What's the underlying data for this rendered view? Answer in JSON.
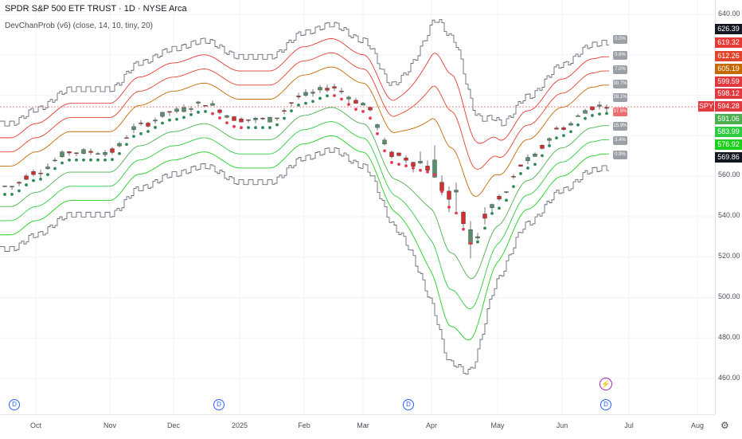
{
  "header": {
    "title": "SPDR S&P 500 ETF TRUST · 1D · NYSE Arca",
    "indicator": "DevChanProb (v6) (close, 14, 10, tiny, 20)"
  },
  "price_axis": {
    "ticks": [
      "640.00",
      "560.00",
      "540.00",
      "520.00",
      "500.00",
      "480.00",
      "460.00"
    ],
    "tags": [
      {
        "value": "626.39",
        "color": "#131722"
      },
      {
        "value": "619.32",
        "color": "#e53935"
      },
      {
        "value": "612.26",
        "color": "#e0452c"
      },
      {
        "value": "605.19",
        "color": "#c46a00"
      },
      {
        "value": "599.59",
        "color": "#e03a3e"
      },
      {
        "value": "598.12",
        "color": "#e03a3e"
      },
      {
        "value": "594.28",
        "color": "#e03a3e"
      },
      {
        "value": "591.06",
        "color": "#4caf50"
      },
      {
        "value": "583.99",
        "color": "#2ecc40"
      },
      {
        "value": "576.92",
        "color": "#1ecf1e"
      },
      {
        "value": "569.86",
        "color": "#131722"
      }
    ],
    "symbol": "SPY"
  },
  "time_axis": {
    "labels": [
      "Oct",
      "Nov",
      "Dec",
      "2025",
      "Feb",
      "Mar",
      "Apr",
      "May",
      "Jun",
      "Jul",
      "Aug"
    ]
  },
  "channel_labels": [
    {
      "text": "0.0%",
      "color": "#9aa0a6"
    },
    {
      "text": "0.6%",
      "color": "#9aa0a6"
    },
    {
      "text": "7.0%",
      "color": "#9aa0a6"
    },
    {
      "text": "30.7%",
      "color": "#9aa0a6"
    },
    {
      "text": "28.1%",
      "color": "#9aa0a6"
    },
    {
      "text": "37.5%",
      "color": "#f06b6b"
    },
    {
      "text": "15.9%",
      "color": "#9aa0a6"
    },
    {
      "text": "3.4%",
      "color": "#9aa0a6"
    },
    {
      "text": "0.9%",
      "color": "#9aa0a6"
    }
  ],
  "event_markers": [
    "D",
    "D",
    "D",
    "D"
  ],
  "bolt_marker": "⚡",
  "chart_data": {
    "type": "line",
    "title": "SPDR S&P 500 ETF TRUST · 1D · NYSE Arca",
    "ylim": [
      452,
      645
    ],
    "x_months": [
      "Oct",
      "Nov",
      "Dec",
      "2025",
      "Feb",
      "Mar",
      "Apr",
      "May",
      "Jun",
      "Jul",
      "Aug"
    ],
    "center_line": [
      {
        "x": "Sep 20",
        "y": 555
      },
      {
        "x": "Oct 1",
        "y": 562
      },
      {
        "x": "Oct 15",
        "y": 572
      },
      {
        "x": "Nov 1",
        "y": 572
      },
      {
        "x": "Nov 15",
        "y": 585
      },
      {
        "x": "Dec 1",
        "y": 592
      },
      {
        "x": "Dec 15",
        "y": 596
      },
      {
        "x": "Jan 1",
        "y": 588
      },
      {
        "x": "Jan 15",
        "y": 588
      },
      {
        "x": "Feb 1",
        "y": 600
      },
      {
        "x": "Feb 15",
        "y": 604
      },
      {
        "x": "Mar 1",
        "y": 596
      },
      {
        "x": "Mar 15",
        "y": 570
      },
      {
        "x": "Apr 1",
        "y": 566
      },
      {
        "x": "Apr 10",
        "y": 548
      },
      {
        "x": "Apr 20",
        "y": 530
      },
      {
        "x": "May 1",
        "y": 548
      },
      {
        "x": "May 15",
        "y": 568
      },
      {
        "x": "Jun 1",
        "y": 584
      },
      {
        "x": "Jun 15",
        "y": 594
      },
      {
        "x": "Jun 20",
        "y": 595
      }
    ],
    "bands": [
      "0.0%",
      "0.6%",
      "7.0%",
      "30.7%",
      "28.1%",
      "37.5%",
      "15.9%",
      "3.4%",
      "0.9%"
    ],
    "last_close": 594.28
  }
}
